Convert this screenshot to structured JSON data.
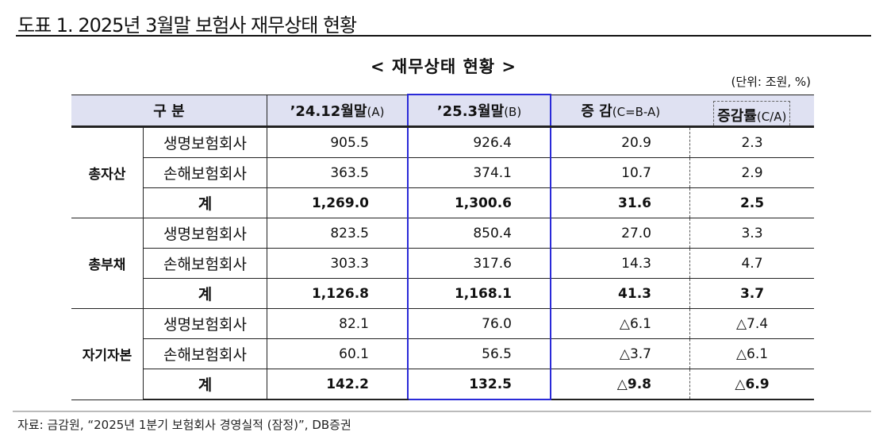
{
  "title": "도표 1. 2025년 3월말 보험사 재무상태 현황",
  "subtitle": "< 재무상태 현황 >",
  "unit": "(단위: 조원, %)",
  "headers": {
    "category": "구  분",
    "a": "’24.12월말",
    "a_s": "(A)",
    "b": "’25.3월말",
    "b_s": "(B)",
    "c": "증 감",
    "c_s": "(C=B-A)",
    "r": "증감률",
    "r_s": "(C/A)"
  },
  "groups": [
    {
      "name": "총자산",
      "rows": [
        {
          "label": "생명보험회사",
          "a": "905.5",
          "b": "926.4",
          "c": "20.9",
          "r": "2.3"
        },
        {
          "label": "손해보험회사",
          "a": "363.5",
          "b": "374.1",
          "c": "10.7",
          "r": "2.9"
        },
        {
          "label": "계",
          "a": "1,269.0",
          "b": "1,300.6",
          "c": "31.6",
          "r": "2.5"
        }
      ]
    },
    {
      "name": "총부채",
      "rows": [
        {
          "label": "생명보험회사",
          "a": "823.5",
          "b": "850.4",
          "c": "27.0",
          "r": "3.3"
        },
        {
          "label": "손해보험회사",
          "a": "303.3",
          "b": "317.6",
          "c": "14.3",
          "r": "4.7"
        },
        {
          "label": "계",
          "a": "1,126.8",
          "b": "1,168.1",
          "c": "41.3",
          "r": "3.7"
        }
      ]
    },
    {
      "name": "자기자본",
      "rows": [
        {
          "label": "생명보험회사",
          "a": "82.1",
          "b": "76.0",
          "c": "△6.1",
          "r": "△7.4"
        },
        {
          "label": "손해보험회사",
          "a": "60.1",
          "b": "56.5",
          "c": "△3.7",
          "r": "△6.1"
        },
        {
          "label": "계",
          "a": "142.2",
          "b": "132.5",
          "c": "△9.8",
          "r": "△6.9"
        }
      ]
    }
  ],
  "source": "자료: 금감원, “2025년 1분기 보험회사 경영실적 (잠정)”, DB증권"
}
